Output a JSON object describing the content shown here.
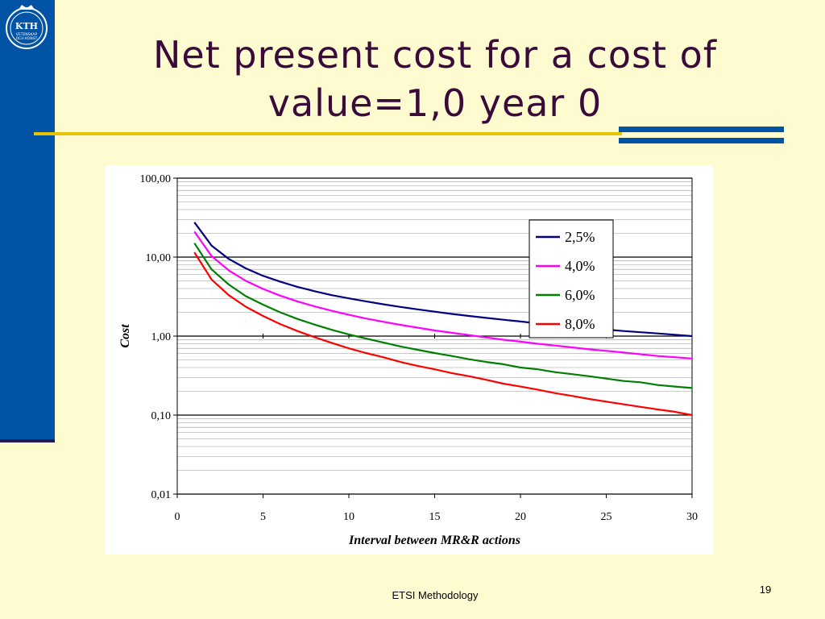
{
  "slide": {
    "title": "Net present cost for a cost of\nvalue=1,0 year 0",
    "footer": "ETSI Methodology",
    "page_number": "19",
    "logo_text": "KTH",
    "logo_subtext_1": "VETENSKAP",
    "logo_subtext_2": "OCH KONST"
  },
  "colors": {
    "background": "#FFFBD0",
    "sidebar": "#0053A5",
    "title": "#3A0A3A",
    "rule": "#E8C400"
  },
  "chart_data": {
    "type": "line",
    "title": "",
    "xlabel": "Interval between MR&R actions",
    "ylabel": "Cost",
    "x_scale": "linear",
    "y_scale": "log",
    "xlim": [
      0,
      30
    ],
    "ylim": [
      0.01,
      100
    ],
    "x_ticks": [
      "0",
      "5",
      "10",
      "15",
      "20",
      "25",
      "30"
    ],
    "y_ticks": [
      "100,00",
      "10,00",
      "1,00",
      "0,10",
      "0,01"
    ],
    "grid": "major and minor horizontal gridlines",
    "legend_position": "top-right",
    "x": [
      1,
      2,
      3,
      4,
      5,
      6,
      7,
      8,
      9,
      10,
      11,
      12,
      13,
      14,
      15,
      16,
      17,
      18,
      19,
      20,
      21,
      22,
      23,
      24,
      25,
      26,
      27,
      28,
      29,
      30
    ],
    "series": [
      {
        "name": "2,5%",
        "color": "#000080",
        "values": [
          27.6,
          14.0,
          9.5,
          7.2,
          5.8,
          4.9,
          4.2,
          3.7,
          3.3,
          3.0,
          2.75,
          2.53,
          2.34,
          2.18,
          2.04,
          1.91,
          1.8,
          1.7,
          1.61,
          1.53,
          1.45,
          1.39,
          1.32,
          1.27,
          1.21,
          1.16,
          1.12,
          1.08,
          1.04,
          1.0
        ]
      },
      {
        "name": "4,0%",
        "color": "#FF00FF",
        "values": [
          21.0,
          10.3,
          6.8,
          5.0,
          3.95,
          3.25,
          2.75,
          2.38,
          2.09,
          1.86,
          1.67,
          1.52,
          1.39,
          1.28,
          1.18,
          1.1,
          1.03,
          0.96,
          0.9,
          0.85,
          0.8,
          0.76,
          0.72,
          0.68,
          0.65,
          0.62,
          0.59,
          0.56,
          0.54,
          0.52
        ]
      },
      {
        "name": "6,0%",
        "color": "#008000",
        "values": [
          15.0,
          7.0,
          4.5,
          3.2,
          2.5,
          2.0,
          1.65,
          1.4,
          1.2,
          1.05,
          0.93,
          0.83,
          0.74,
          0.67,
          0.61,
          0.56,
          0.51,
          0.47,
          0.44,
          0.4,
          0.38,
          0.35,
          0.33,
          0.31,
          0.29,
          0.27,
          0.26,
          0.24,
          0.23,
          0.22
        ]
      },
      {
        "name": "8,0%",
        "color": "#FF0000",
        "values": [
          11.5,
          5.2,
          3.3,
          2.35,
          1.8,
          1.42,
          1.16,
          0.97,
          0.82,
          0.7,
          0.61,
          0.54,
          0.47,
          0.42,
          0.38,
          0.34,
          0.31,
          0.28,
          0.25,
          0.23,
          0.21,
          0.19,
          0.175,
          0.16,
          0.148,
          0.137,
          0.127,
          0.118,
          0.11,
          0.1
        ]
      }
    ]
  }
}
